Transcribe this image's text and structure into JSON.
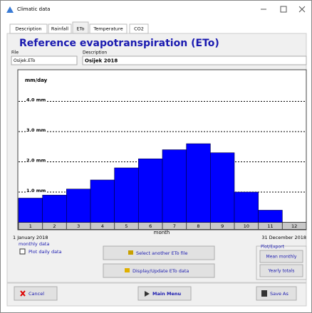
{
  "window": {
    "title": "Climatic data"
  },
  "tabs": [
    "Description",
    "Rainfall",
    "ETo",
    "Temperature",
    "CO2"
  ],
  "heading": "Reference evapotranspiration (ETo)",
  "file": {
    "label": "File",
    "value": "Osijek.ETo"
  },
  "description": {
    "label": "Description",
    "value": "Osijek 2018"
  },
  "chart_data": {
    "type": "bar",
    "y_label": "mm/day",
    "x_label": "month",
    "categories": [
      "1",
      "2",
      "3",
      "4",
      "5",
      "6",
      "7",
      "8",
      "9",
      "10",
      "11",
      "12"
    ],
    "values": [
      0.8,
      0.9,
      1.1,
      1.4,
      1.8,
      2.1,
      2.4,
      2.6,
      2.3,
      1.0,
      0.4,
      0
    ],
    "color": "#0000ff",
    "ylim": [
      0,
      5
    ],
    "yticks": [
      {
        "value": 1,
        "label": "1.0 mm"
      },
      {
        "value": 2,
        "label": "2.0 mm"
      },
      {
        "value": 3,
        "label": "3.0 mm"
      },
      {
        "value": 4,
        "label": "4.0 mm"
      }
    ],
    "grid": true
  },
  "start_date": "1 January 2018",
  "end_date": "31 December 2018",
  "data_kind": "monthly data",
  "checkbox": "Plot daily data",
  "buttons": {
    "select": "Select another ETo file",
    "display": "Display/Update ETo data"
  },
  "plot_export": {
    "title": "Plot/Export",
    "buttons": [
      "Mean monthly",
      "Yearly totals"
    ]
  },
  "footer": {
    "cancel": "Cancel",
    "main_menu": "Main Menu",
    "save_as": "Save As"
  }
}
